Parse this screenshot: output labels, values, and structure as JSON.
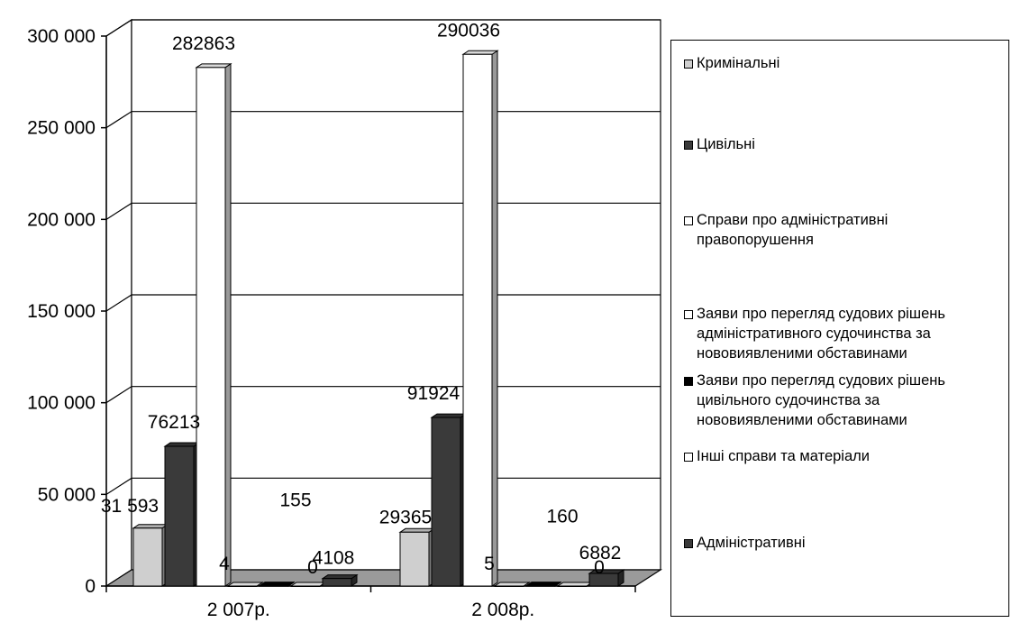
{
  "chart_data": {
    "type": "bar",
    "categories": [
      "2 007р.",
      "2 008р."
    ],
    "y_ticks": [
      "0",
      "50 000",
      "100 000",
      "150 000",
      "200 000",
      "250 000",
      "300 000"
    ],
    "ylim": [
      0,
      300000
    ],
    "grid": true,
    "legend_position": "right",
    "series": [
      {
        "name": "Кримінальні",
        "color": "#cfcfcf",
        "values": [
          31593,
          29365
        ],
        "labels": [
          "31 593",
          "29365"
        ]
      },
      {
        "name": "Цивільні",
        "color": "#3a3a3a",
        "values": [
          76213,
          91924
        ],
        "labels": [
          "76213",
          "91924"
        ]
      },
      {
        "name": "Справи про адміністративні\nправопорушення",
        "color": "#ffffff",
        "values": [
          282863,
          290036
        ],
        "labels": [
          "282863",
          "290036"
        ]
      },
      {
        "name": "Заяви про перегляд судових рішень\nадміністративного судочинства за\nнововиявленими обставинами",
        "color": "#ffffff",
        "values": [
          4,
          5
        ],
        "labels": [
          "4",
          "5"
        ]
      },
      {
        "name": "Заяви про перегляд судових рішень\nцивільного судочинства за\nнововиявленими обставинами",
        "color": "#000000",
        "values": [
          155,
          160
        ],
        "labels": [
          "155",
          "160"
        ]
      },
      {
        "name": "Інші справи та матеріали",
        "color": "#ffffff",
        "values": [
          0,
          0
        ],
        "labels": [
          "0",
          "0"
        ]
      },
      {
        "name": "Адміністративні",
        "color": "#3a3a3a",
        "values": [
          4108,
          6882
        ],
        "labels": [
          "4108",
          "6882"
        ]
      }
    ]
  }
}
